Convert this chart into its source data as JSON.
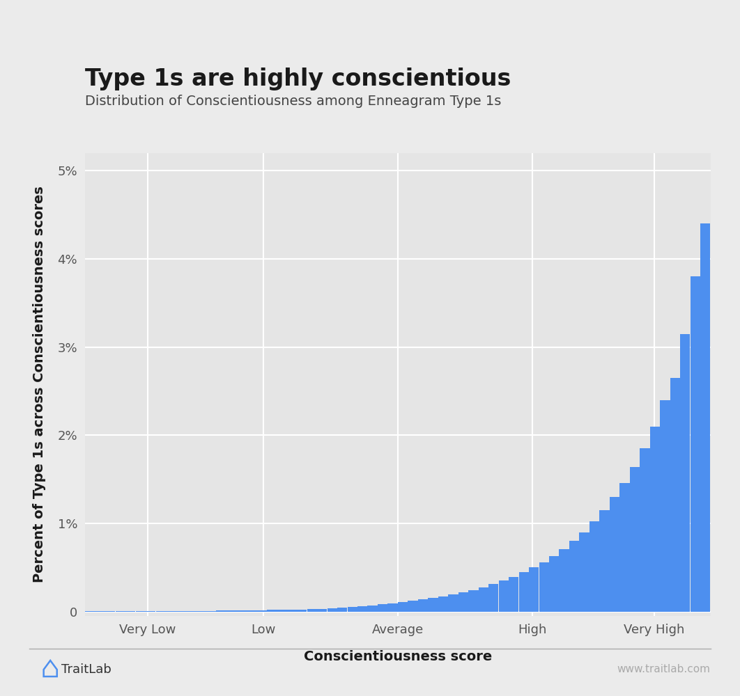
{
  "title": "Type 1s are highly conscientious",
  "subtitle": "Distribution of Conscientiousness among Enneagram Type 1s",
  "xlabel": "Conscientiousness score",
  "ylabel": "Percent of Type 1s across Conscientiousness scores",
  "bar_color": "#4d8fef",
  "background_color": "#ebebeb",
  "plot_background": "#e5e5e5",
  "grid_color": "#d8d8d8",
  "x_tick_labels": [
    "Very Low",
    "Low",
    "Average",
    "High",
    "Very High"
  ],
  "ylim": [
    -0.0005,
    0.052
  ],
  "yticks": [
    0.0,
    0.01,
    0.02,
    0.03,
    0.04,
    0.05
  ],
  "ytick_labels": [
    "0",
    "1%",
    "2%",
    "3%",
    "4%",
    "5%"
  ],
  "bar_values": [
    4e-05,
    3e-05,
    4e-05,
    4e-05,
    4e-05,
    5e-05,
    5e-05,
    5e-05,
    6e-05,
    6e-05,
    7e-05,
    8e-05,
    9e-05,
    0.0001,
    0.00011,
    0.00012,
    0.00014,
    0.00016,
    0.00018,
    0.0002,
    0.00022,
    0.00025,
    0.00028,
    0.00032,
    0.00038,
    0.00044,
    0.00052,
    0.0006,
    0.0007,
    0.00082,
    0.00095,
    0.0011,
    0.00125,
    0.0014,
    0.00158,
    0.00175,
    0.00195,
    0.00218,
    0.00245,
    0.00275,
    0.0031,
    0.0035,
    0.00395,
    0.00445,
    0.005,
    0.0056,
    0.0063,
    0.0071,
    0.008,
    0.009,
    0.0102,
    0.0115,
    0.013,
    0.0146,
    0.0164,
    0.0185,
    0.021,
    0.024,
    0.0265,
    0.0315,
    0.038,
    0.044
  ],
  "logo_text": "TraitLab",
  "watermark_text": "www.traitlab.com",
  "title_fontsize": 24,
  "subtitle_fontsize": 14,
  "axis_label_fontsize": 14,
  "tick_fontsize": 13
}
